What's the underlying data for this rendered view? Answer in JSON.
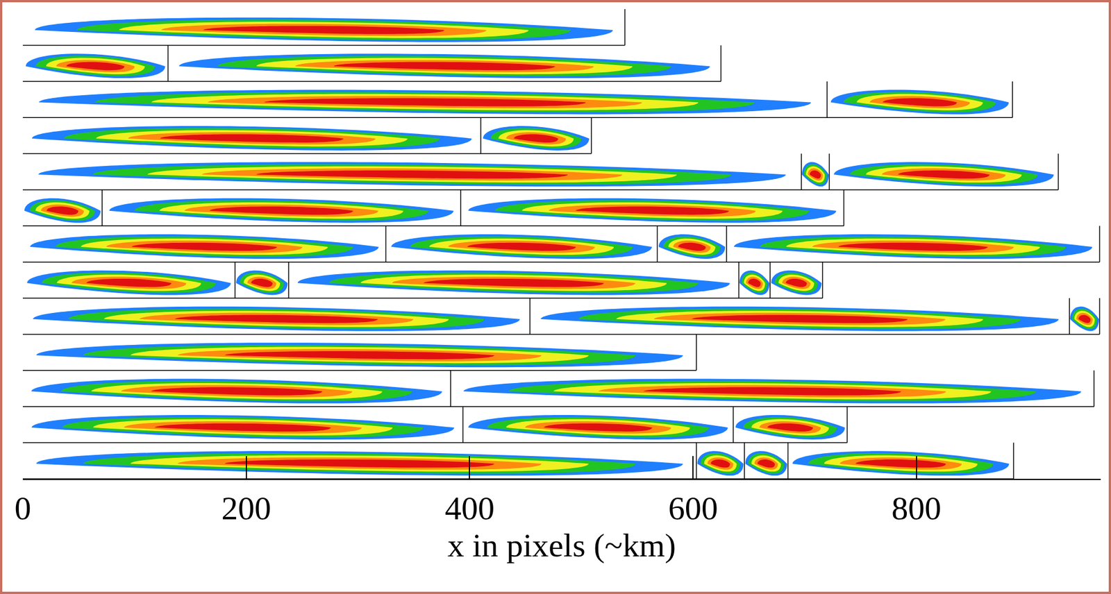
{
  "chart_data": {
    "type": "mosaic",
    "xlabel": "x in pixels (~km)",
    "xlim": [
      0,
      965
    ],
    "xticks": [
      0,
      200,
      400,
      600,
      800
    ],
    "colors": [
      "#1f7fff",
      "#22c422",
      "#f0f020",
      "#ff8a10",
      "#e01010"
    ],
    "rows": [
      [
        0,
        539
      ],
      [
        0,
        130,
        625
      ],
      [
        0,
        720,
        886
      ],
      [
        0,
        410,
        509
      ],
      [
        0,
        697,
        722,
        927
      ],
      [
        0,
        71,
        392,
        735
      ],
      [
        0,
        325,
        568,
        630,
        964
      ],
      [
        0,
        190,
        238,
        641,
        669,
        716
      ],
      [
        0,
        454,
        937,
        964
      ],
      [
        0,
        603
      ],
      [
        0,
        383,
        959
      ],
      [
        0,
        394,
        636,
        738
      ],
      [
        0,
        603,
        646,
        685,
        887
      ]
    ]
  }
}
